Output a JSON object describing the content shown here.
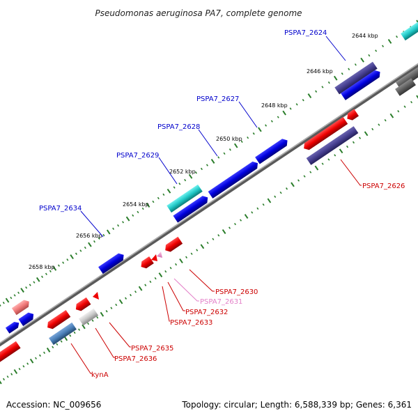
{
  "title": "Pseudomonas aeruginosa PA7, complete genome",
  "footer": {
    "accession": "Accession: NC_009656",
    "summary": "Topology: circular; Length: 6,588,339 bp; Genes: 6,361"
  },
  "colors": {
    "backbone": "#7a7a7a",
    "tick": "#2a7d2a",
    "label_blue": "#0000cc",
    "label_red": "#cc0000",
    "label_pink": "#e37fc8"
  },
  "ticks": [
    {
      "label": "2644 kbp"
    },
    {
      "label": "2646 kbp"
    },
    {
      "label": "2648 kbp"
    },
    {
      "label": "2650 kbp"
    },
    {
      "label": "2652 kbp"
    },
    {
      "label": "2654 kbp"
    },
    {
      "label": "2656 kbp"
    },
    {
      "label": "2658 kbp"
    }
  ],
  "gene_labels": [
    {
      "text": "PSPA7_2624",
      "color": "#0000cc"
    },
    {
      "text": "PSPA7_2627",
      "color": "#0000cc"
    },
    {
      "text": "PSPA7_2628",
      "color": "#0000cc"
    },
    {
      "text": "PSPA7_2629",
      "color": "#0000cc"
    },
    {
      "text": "PSPA7_2634",
      "color": "#0000cc"
    },
    {
      "text": "PSPA7_2626",
      "color": "#cc0000"
    },
    {
      "text": "PSPA7_2630",
      "color": "#cc0000"
    },
    {
      "text": "PSPA7_2631",
      "color": "#e37fc8"
    },
    {
      "text": "PSPA7_2632",
      "color": "#cc0000"
    },
    {
      "text": "PSPA7_2633",
      "color": "#cc0000"
    },
    {
      "text": "PSPA7_2635",
      "color": "#cc0000"
    },
    {
      "text": "PSPA7_2636",
      "color": "#cc0000"
    },
    {
      "text": "kynA",
      "color": "#cc0000"
    }
  ]
}
